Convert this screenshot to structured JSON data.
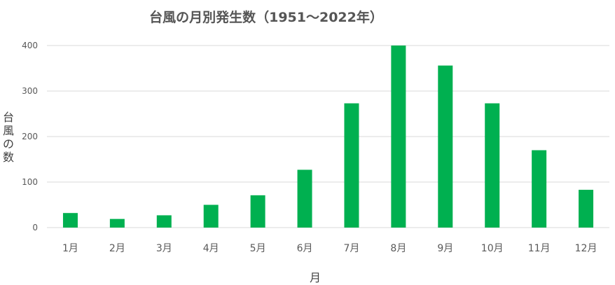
{
  "chart_data": {
    "type": "bar",
    "title": "台風の月別発生数（1951〜2022年）",
    "xlabel": "月",
    "ylabel": "台風の数",
    "categories": [
      "1月",
      "2月",
      "3月",
      "4月",
      "5月",
      "6月",
      "7月",
      "8月",
      "9月",
      "10月",
      "11月",
      "12月"
    ],
    "values": [
      32,
      19,
      27,
      50,
      71,
      127,
      273,
      400,
      356,
      273,
      170,
      83
    ],
    "ylim": [
      0,
      400
    ],
    "yticks": [
      0,
      100,
      200,
      300,
      400
    ],
    "grid": true,
    "legend": "none",
    "bar_color": "#00b050"
  }
}
